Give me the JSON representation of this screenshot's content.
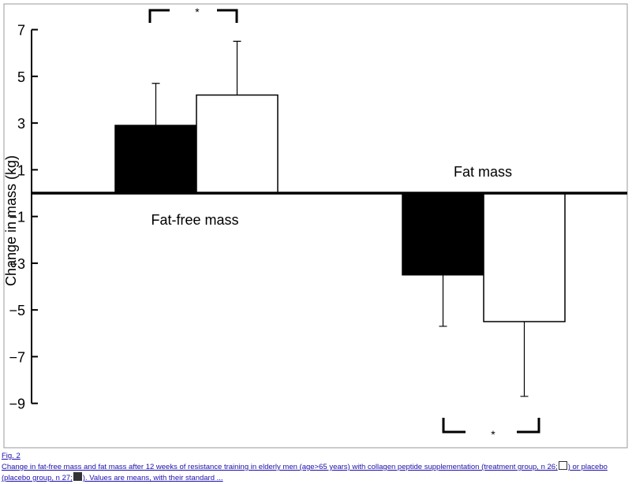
{
  "chart_data": {
    "type": "bar",
    "y_label": "Change in mass (kg)",
    "categories": [
      "Fat-free mass",
      "Fat mass"
    ],
    "series": [
      {
        "color": "#000000",
        "values": [
          2.9,
          -3.5
        ],
        "errors": [
          1.8,
          2.2
        ]
      },
      {
        "color": "#ffffff",
        "values": [
          4.2,
          -5.5
        ],
        "errors": [
          2.3,
          3.2
        ]
      }
    ],
    "annotations": [
      "*",
      "*"
    ],
    "ylim": [
      -10.9,
      8.1
    ],
    "yticks": [
      7,
      5,
      3,
      1,
      {
        "value": -1,
        "label": "−1"
      },
      {
        "value": -3,
        "label": "−3"
      },
      {
        "value": -5,
        "label": "−5"
      },
      {
        "value": -7,
        "label": "−7"
      },
      {
        "value": -9,
        "label": "−9"
      }
    ]
  },
  "caption": {
    "figure": "Fig. 2",
    "text_1": "Change in fat-free mass and fat mass after 12 weeks of resistance training in elderly men (age>65 years) with collagen peptide supplementation (treatment group, n 26;",
    "text_2": ") or placebo (placebo group, n 27;",
    "text_3": "). Values are means, with their standard ..."
  }
}
